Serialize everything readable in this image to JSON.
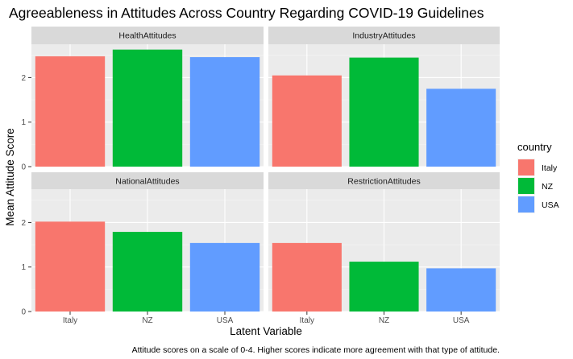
{
  "chart_data": {
    "type": "bar",
    "title": "Agreeableness in Attitudes Across Country Regarding COVID-19 Guidelines",
    "xlabel": "Latent Variable",
    "ylabel": "Mean Attitude Score",
    "caption": "Attitude scores on a scale of 0-4. Higher scores indicate more agreement with that type of attitude.",
    "categories": [
      "Italy",
      "NZ",
      "USA"
    ],
    "yticks": [
      0,
      1,
      2
    ],
    "ylim": [
      0,
      2.75
    ],
    "legend": {
      "title": "country",
      "position": "right",
      "items": [
        {
          "name": "Italy",
          "color": "#F8766D"
        },
        {
          "name": "NZ",
          "color": "#00BA38"
        },
        {
          "name": "USA",
          "color": "#619CFF"
        }
      ]
    },
    "facets": [
      {
        "name": "HealthAttitudes",
        "values": [
          2.48,
          2.63,
          2.46
        ]
      },
      {
        "name": "IndustryAttitudes",
        "values": [
          2.05,
          2.45,
          1.75
        ]
      },
      {
        "name": "NationalAttitudes",
        "values": [
          2.02,
          1.79,
          1.54
        ]
      },
      {
        "name": "RestrictionAttitudes",
        "values": [
          1.54,
          1.12,
          0.97
        ]
      }
    ],
    "grid": true
  }
}
